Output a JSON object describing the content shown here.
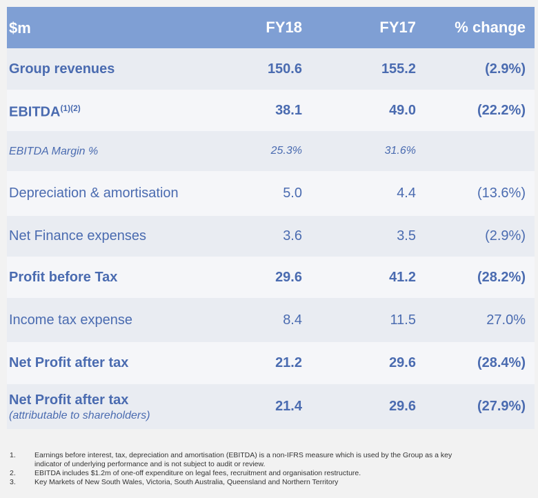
{
  "table": {
    "header": [
      "$m",
      "FY18",
      "FY17",
      "% change"
    ],
    "rows": [
      {
        "label": "Group revenues",
        "style": "bold",
        "fy18": "150.6",
        "fy17": "155.2",
        "change": "(2.9%)"
      },
      {
        "label": "EBITDA",
        "sup": "(1)(2)",
        "style": "bold",
        "fy18": "38.1",
        "fy17": "49.0",
        "change": "(22.2%)"
      },
      {
        "label": "EBITDA Margin %",
        "style": "italic",
        "fy18": "25.3%",
        "fy17": "31.6%"
      },
      {
        "label": "Depreciation & amortisation",
        "style": "normal",
        "fy18": "5.0",
        "fy17": "4.4",
        "change": "(13.6%)"
      },
      {
        "label": "Net Finance expenses",
        "style": "normal",
        "fy18": "3.6",
        "fy17": "3.5",
        "change": "(2.9%)"
      },
      {
        "label": "Profit before Tax",
        "style": "bold",
        "fy18": "29.6",
        "fy17": "41.2",
        "change": "(28.2%)"
      },
      {
        "label": "Income tax expense",
        "style": "normal",
        "fy18": "8.4",
        "fy17": "11.5",
        "change": "27.0%"
      },
      {
        "label": "Net Profit after tax",
        "style": "bold",
        "fy18": "21.2",
        "fy17": "29.6",
        "change": "(28.4%)"
      },
      {
        "label": "Net Profit after tax",
        "sublabel": "(attributable to shareholders)",
        "style": "bold",
        "fy18": "21.4",
        "fy17": "29.6",
        "change": "(27.9%)"
      }
    ]
  },
  "footnotes": [
    {
      "number": "1.",
      "text": "Earnings before interest, tax, depreciation and amortisation (EBITDA) is a non-IFRS measure which is used by the Group as a key indicator of underlying performance and is not subject to audit or review."
    },
    {
      "number": "2.",
      "text": "EBITDA includes $1.2m of one-off expenditure on legal fees, recruitment and organisation restructure."
    },
    {
      "number": "3.",
      "text": "Key Markets of New South Wales, Victoria, South Australia, Queensland and Northern Territory"
    }
  ]
}
